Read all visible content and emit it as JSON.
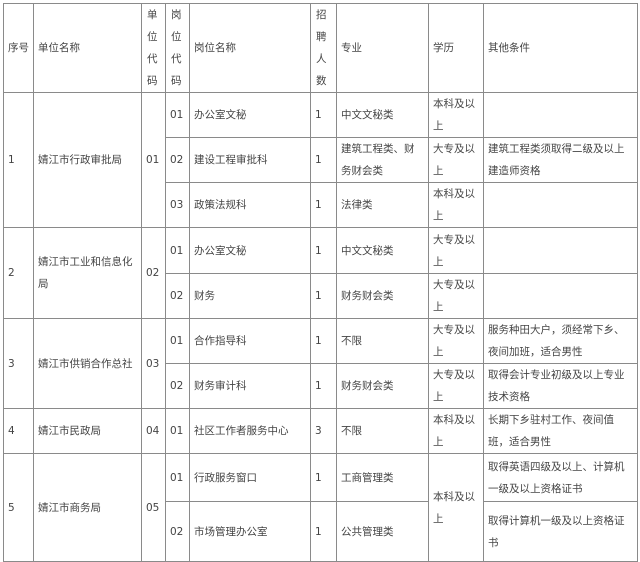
{
  "headers": {
    "seq": "序号",
    "unit": "单位名称",
    "unit_code": "单位代码",
    "pos_code": "岗位代码",
    "pos_name": "岗位名称",
    "count": "招聘人数",
    "major": "专业",
    "edu": "学历",
    "other": "其他条件"
  },
  "units": [
    {
      "seq": "1",
      "name": "婧江市行政审批局",
      "code": "01",
      "positions": [
        {
          "code": "01",
          "name": "办公室文秘",
          "count": "1",
          "major": "中文文秘类",
          "edu": "本科及以上",
          "other": ""
        },
        {
          "code": "02",
          "name": "建设工程审批科",
          "count": "1",
          "major": "建筑工程类、财务财会类",
          "edu": "大专及以上",
          "other": "建筑工程类须取得二级及以上建造师资格"
        },
        {
          "code": "03",
          "name": "政策法规科",
          "count": "1",
          "major": "法律类",
          "edu": "本科及以上",
          "other": ""
        }
      ]
    },
    {
      "seq": "2",
      "name": "婧江市工业和信息化局",
      "code": "02",
      "positions": [
        {
          "code": "01",
          "name": "办公室文秘",
          "count": "1",
          "major": "中文文秘类",
          "edu": "大专及以上",
          "other": ""
        },
        {
          "code": "02",
          "name": "财务",
          "count": "1",
          "major": "财务财会类",
          "edu": "大专及以上",
          "other": ""
        }
      ]
    },
    {
      "seq": "3",
      "name": "婧江市供销合作总社",
      "code": "03",
      "positions": [
        {
          "code": "01",
          "name": "合作指导科",
          "count": "1",
          "major": "不限",
          "edu": "大专及以上",
          "other": "服务种田大户，须经常下乡、夜间加班，适合男性"
        },
        {
          "code": "02",
          "name": "财务审计科",
          "count": "1",
          "major": "财务财会类",
          "edu": "大专及以上",
          "other": "取得会计专业初级及以上专业技术资格"
        }
      ]
    },
    {
      "seq": "4",
      "name": "婧江市民政局",
      "code": "04",
      "positions": [
        {
          "code": "01",
          "name": "社区工作者服务中心",
          "count": "3",
          "major": "不限",
          "edu": "本科及以上",
          "other": "长期下乡驻村工作、夜间值班，适合男性"
        }
      ]
    },
    {
      "seq": "5",
      "name": "婧江市商务局",
      "code": "05",
      "edu_shared": "本科及以上",
      "positions": [
        {
          "code": "01",
          "name": "行政服务窗口",
          "count": "1",
          "major": "工商管理类",
          "other": "取得英语四级及以上、计算机一级及以上资格证书"
        },
        {
          "code": "02",
          "name": "市场管理办公室",
          "count": "1",
          "major": "公共管理类",
          "other": "取得计算机一级及以上资格证书"
        }
      ]
    }
  ]
}
